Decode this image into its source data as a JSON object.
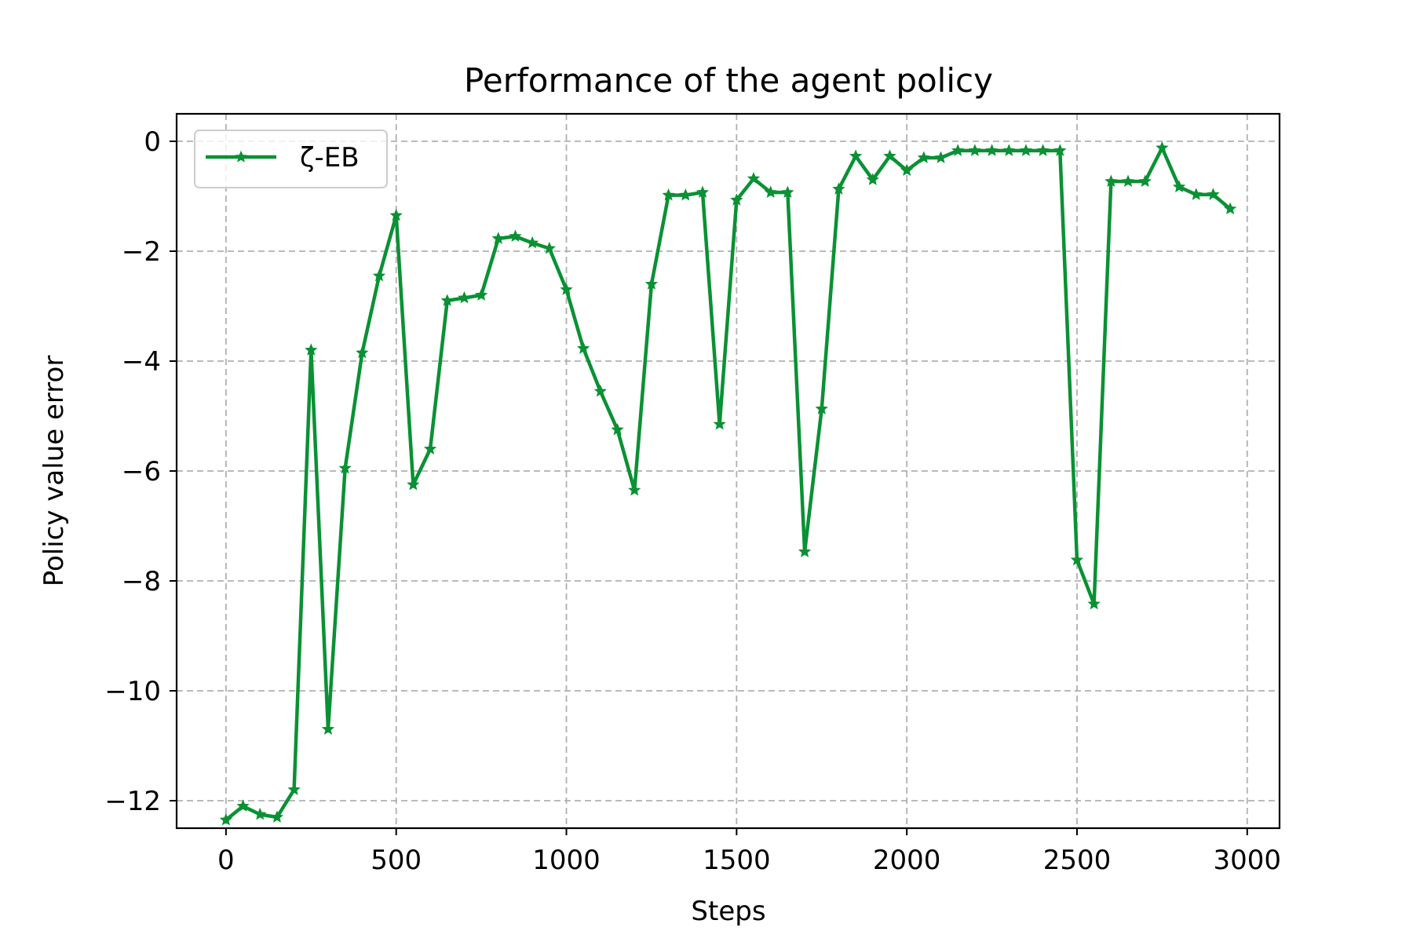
{
  "chart_data": {
    "type": "line",
    "title": "Performance of the agent policy",
    "xlabel": "Steps",
    "ylabel": "Policy value error",
    "xlim": [
      -145,
      3095
    ],
    "ylim": [
      -12.5,
      0.5
    ],
    "xticks": [
      0,
      500,
      1000,
      1500,
      2000,
      2500,
      3000
    ],
    "xtick_labels": [
      "0",
      "500",
      "1000",
      "1500",
      "2000",
      "2500",
      "3000"
    ],
    "yticks": [
      0,
      -2,
      -4,
      -6,
      -8,
      -10,
      -12
    ],
    "ytick_labels": [
      "0",
      "−2",
      "−4",
      "−6",
      "−8",
      "−10",
      "−12"
    ],
    "grid": true,
    "legend_position": "upper-left",
    "series": [
      {
        "name": "ζ-EB",
        "color": "#0a9134",
        "marker": "star",
        "x": [
          0,
          50,
          100,
          150,
          200,
          250,
          300,
          350,
          400,
          450,
          500,
          550,
          600,
          650,
          700,
          750,
          800,
          850,
          900,
          950,
          1000,
          1050,
          1100,
          1150,
          1200,
          1250,
          1300,
          1350,
          1400,
          1450,
          1500,
          1550,
          1600,
          1650,
          1700,
          1750,
          1800,
          1850,
          1900,
          1950,
          2000,
          2050,
          2100,
          2150,
          2200,
          2250,
          2300,
          2350,
          2400,
          2450,
          2500,
          2550,
          2600,
          2650,
          2700,
          2750,
          2800,
          2850,
          2900,
          2950
        ],
        "y": [
          -12.35,
          -12.1,
          -12.25,
          -12.3,
          -11.8,
          -3.8,
          -10.7,
          -5.95,
          -3.85,
          -2.45,
          -1.35,
          -6.25,
          -5.6,
          -2.9,
          -2.85,
          -2.8,
          -1.77,
          -1.73,
          -1.85,
          -1.95,
          -2.7,
          -3.77,
          -4.55,
          -5.25,
          -6.35,
          -2.6,
          -0.98,
          -0.98,
          -0.93,
          -5.15,
          -1.07,
          -0.68,
          -0.93,
          -0.93,
          -7.47,
          -4.87,
          -0.87,
          -0.27,
          -0.7,
          -0.27,
          -0.53,
          -0.3,
          -0.3,
          -0.17,
          -0.17,
          -0.17,
          -0.17,
          -0.17,
          -0.17,
          -0.17,
          -7.62,
          -8.42,
          -0.73,
          -0.73,
          -0.73,
          -0.12,
          -0.83,
          -0.97,
          -0.97,
          -1.23
        ]
      }
    ]
  }
}
